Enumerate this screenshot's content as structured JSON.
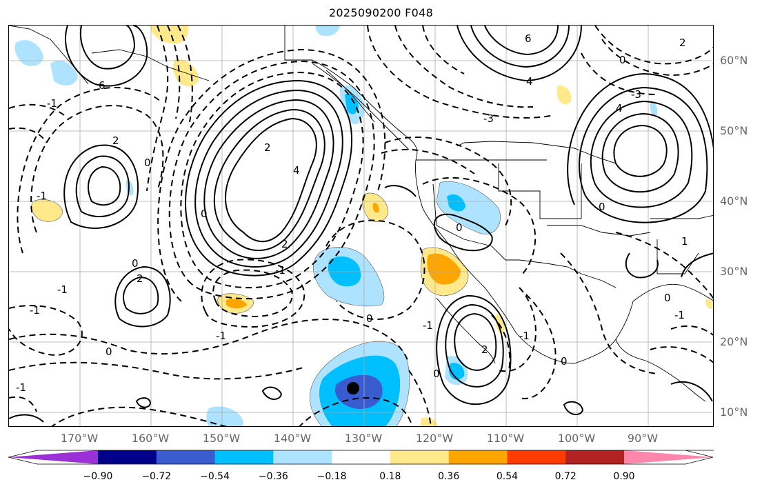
{
  "title": "2025090200 F048",
  "lat_labels": [
    "60°N",
    "50°N",
    "40°N",
    "30°N",
    "20°N",
    "10°N"
  ],
  "lon_labels": [
    "170°W",
    "160°W",
    "150°W",
    "140°W",
    "130°W",
    "120°W",
    "110°W",
    "100°W",
    "90°W"
  ],
  "colorbar": {
    "ticks": [
      "−0.90",
      "−0.72",
      "−0.54",
      "−0.36",
      "−0.18",
      "0.18",
      "0.36",
      "0.54",
      "0.72",
      "0.90"
    ],
    "colors": [
      "#9b30d6",
      "#00008b",
      "#3a5cd1",
      "#00bfff",
      "#aee3ff",
      "#ffffff",
      "#ffe98a",
      "#ffa500",
      "#ff3c00",
      "#b22222",
      "#ff86ad"
    ]
  },
  "contour_labels": [
    "6",
    "2",
    "0",
    "-1",
    "2",
    "0",
    "-1",
    "2",
    "4",
    "0",
    "-1",
    "2",
    "-1",
    "0",
    "-1",
    "0",
    "-1",
    "0",
    "-1",
    "2",
    "0",
    "6",
    "4",
    "-3",
    "0",
    "4",
    "-3",
    "0",
    "-1",
    "2",
    "0",
    "-1",
    "1",
    "-1",
    "0"
  ],
  "marker": "black-dot"
}
